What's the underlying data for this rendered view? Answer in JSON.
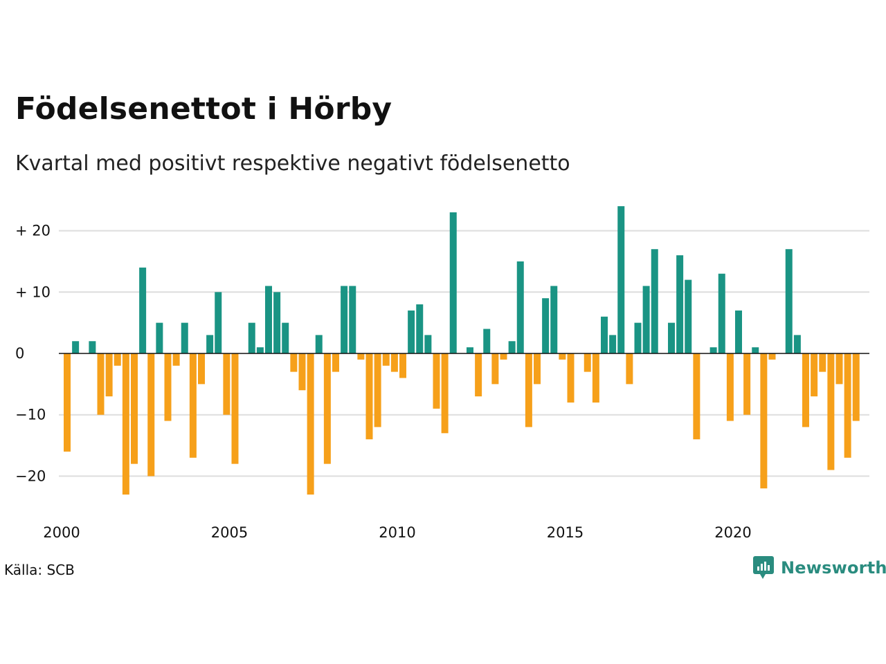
{
  "title": "Födelsenettot i Hörby",
  "subtitle": "Kvartal med positivt respektive negativt födelsenetto",
  "source": "Källa: SCB",
  "brand": "Newsworthy",
  "colors": {
    "positive": "#1a9484",
    "negative": "#f6a01a",
    "grid": "#dddddd",
    "zero": "#111111",
    "brand": "#2a8c7f"
  },
  "chart_data": {
    "type": "bar",
    "y_tick_labels": [
      "+ 20",
      "+ 10",
      "0",
      "−10",
      "−20"
    ],
    "y_ticks": [
      20,
      10,
      0,
      -10,
      -20
    ],
    "x_tick_labels": [
      "2000",
      "2005",
      "2010",
      "2015",
      "2020"
    ],
    "x_ticks": [
      2000,
      2005,
      2010,
      2015,
      2020
    ],
    "ylim": [
      -25.5,
      25
    ],
    "start_year": 2000,
    "grid": true,
    "values": [
      -16,
      2,
      0,
      2,
      -10,
      -7,
      -2,
      -23,
      -18,
      14,
      -20,
      5,
      -11,
      -2,
      5,
      -17,
      -5,
      3,
      10,
      -10,
      -18,
      0,
      5,
      1,
      11,
      10,
      5,
      -3,
      -6,
      -23,
      3,
      -18,
      -3,
      11,
      11,
      -1,
      -14,
      -12,
      -2,
      -3,
      -4,
      7,
      8,
      3,
      -9,
      -13,
      23,
      0,
      1,
      -7,
      4,
      -5,
      -1,
      2,
      15,
      -12,
      -5,
      9,
      11,
      -1,
      -8,
      0,
      -3,
      -8,
      6,
      3,
      24,
      -5,
      5,
      11,
      17,
      0,
      5,
      16,
      12,
      -14,
      0,
      1,
      13,
      -11,
      7,
      -10,
      1,
      -22,
      -1,
      0,
      17,
      3,
      -12,
      -7,
      -3,
      -19,
      -5,
      -17,
      -11
    ]
  }
}
